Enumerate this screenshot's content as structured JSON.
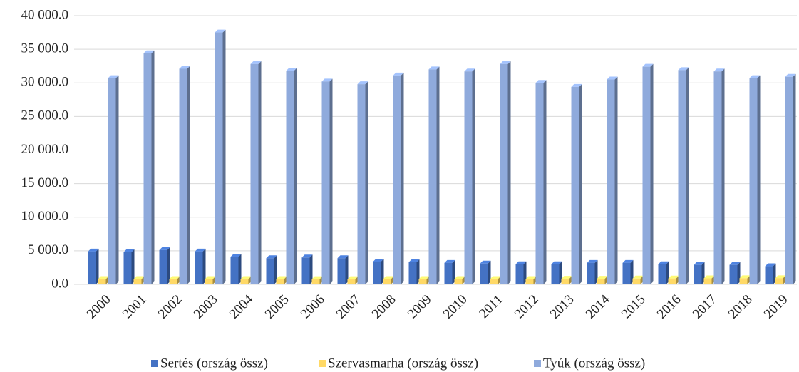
{
  "chart_data": {
    "type": "bar3d",
    "categories": [
      "2000",
      "2001",
      "2002",
      "2003",
      "2004",
      "2005",
      "2006",
      "2007",
      "2008",
      "2009",
      "2010",
      "2011",
      "2012",
      "2013",
      "2014",
      "2015",
      "2016",
      "2017",
      "2018",
      "2019"
    ],
    "series": [
      {
        "name": "Sertés (ország össz)",
        "color": "#4472c4",
        "values": [
          4900,
          4800,
          5100,
          4900,
          4100,
          3900,
          4000,
          3900,
          3400,
          3300,
          3200,
          3100,
          3000,
          3000,
          3200,
          3200,
          3000,
          2900,
          2900,
          2700
        ]
      },
      {
        "name": "Szervasmarha (ország össz)",
        "color": "#ffd966",
        "values": [
          800,
          800,
          800,
          800,
          800,
          800,
          780,
          780,
          790,
          800,
          800,
          800,
          800,
          830,
          840,
          870,
          880,
          900,
          910,
          920
        ]
      },
      {
        "name": "Tyúk (ország össz)",
        "color": "#8faadc",
        "values": [
          30700,
          34400,
          32100,
          37500,
          32800,
          31800,
          30200,
          29800,
          31100,
          32000,
          31700,
          32800,
          30000,
          29400,
          30500,
          32400,
          31900,
          31700,
          30700,
          30900
        ]
      }
    ],
    "ylim": [
      0,
      40000
    ],
    "yticks": [
      {
        "value": 0,
        "label": "0.0"
      },
      {
        "value": 5000,
        "label": "5 000.0"
      },
      {
        "value": 10000,
        "label": "10 000.0"
      },
      {
        "value": 15000,
        "label": "15 000.0"
      },
      {
        "value": 20000,
        "label": "20 000.0"
      },
      {
        "value": 25000,
        "label": "25 000.0"
      },
      {
        "value": 30000,
        "label": "30 000.0"
      },
      {
        "value": 35000,
        "label": "35 000.0"
      },
      {
        "value": 40000,
        "label": "40 000.0"
      }
    ],
    "grid": true,
    "legend": "bottom"
  }
}
